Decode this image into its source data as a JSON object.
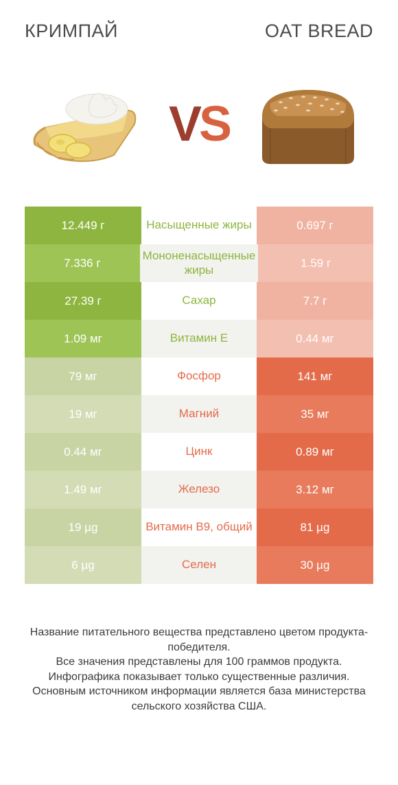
{
  "header": {
    "left": "КРИМПАЙ",
    "right": "OAT BREAD"
  },
  "vs": {
    "v": "V",
    "s": "S"
  },
  "colors": {
    "left_winner_dark": "#8eb53f",
    "left_winner_light": "#9ec456",
    "left_loser_dark": "#c8d4a4",
    "left_loser_light": "#d3dcb5",
    "right_winner_dark": "#e36b4a",
    "right_winner_light": "#e87b5c",
    "right_loser_dark": "#f0b3a1",
    "right_loser_light": "#f3bfb0",
    "mid_text_left": "#e36b4a",
    "mid_text_right": "#8eb53f",
    "mid_alt_bg": "#f2f2ee"
  },
  "rows": [
    {
      "label": "Насыщенные жиры",
      "left": "12.449 г",
      "right": "0.697 г",
      "winner": "left"
    },
    {
      "label": "Мононенасыщенные жиры",
      "left": "7.336 г",
      "right": "1.59 г",
      "winner": "left"
    },
    {
      "label": "Сахар",
      "left": "27.39 г",
      "right": "7.7 г",
      "winner": "left"
    },
    {
      "label": "Витамин E",
      "left": "1.09 мг",
      "right": "0.44 мг",
      "winner": "left"
    },
    {
      "label": "Фосфор",
      "left": "79 мг",
      "right": "141 мг",
      "winner": "right"
    },
    {
      "label": "Магний",
      "left": "19 мг",
      "right": "35 мг",
      "winner": "right"
    },
    {
      "label": "Цинк",
      "left": "0.44 мг",
      "right": "0.89 мг",
      "winner": "right"
    },
    {
      "label": "Железо",
      "left": "1.49 мг",
      "right": "3.12 мг",
      "winner": "right"
    },
    {
      "label": "Витамин B9, общий",
      "left": "19 µg",
      "right": "81 µg",
      "winner": "right"
    },
    {
      "label": "Селен",
      "left": "6 µg",
      "right": "30 µg",
      "winner": "right"
    }
  ],
  "footnote": "Название питательного вещества представлено цветом продукта-победителя.\nВсе значения представлены для 100 граммов продукта.\nИнфографика показывает только существенные различия.\nОсновным источником информации является база министерства сельского хозяйства США.",
  "illustrations": {
    "pie": {
      "crust": "#e8c47a",
      "crust_edge": "#c99b4a",
      "filling": "#f2d98a",
      "cream": "#f5f3ee",
      "banana": "#f3e07a",
      "banana_edge": "#d6b83a"
    },
    "bread": {
      "top": "#b07a3a",
      "top_light": "#c99253",
      "side": "#8a5a2a",
      "oats": "#e8d8b8"
    }
  }
}
